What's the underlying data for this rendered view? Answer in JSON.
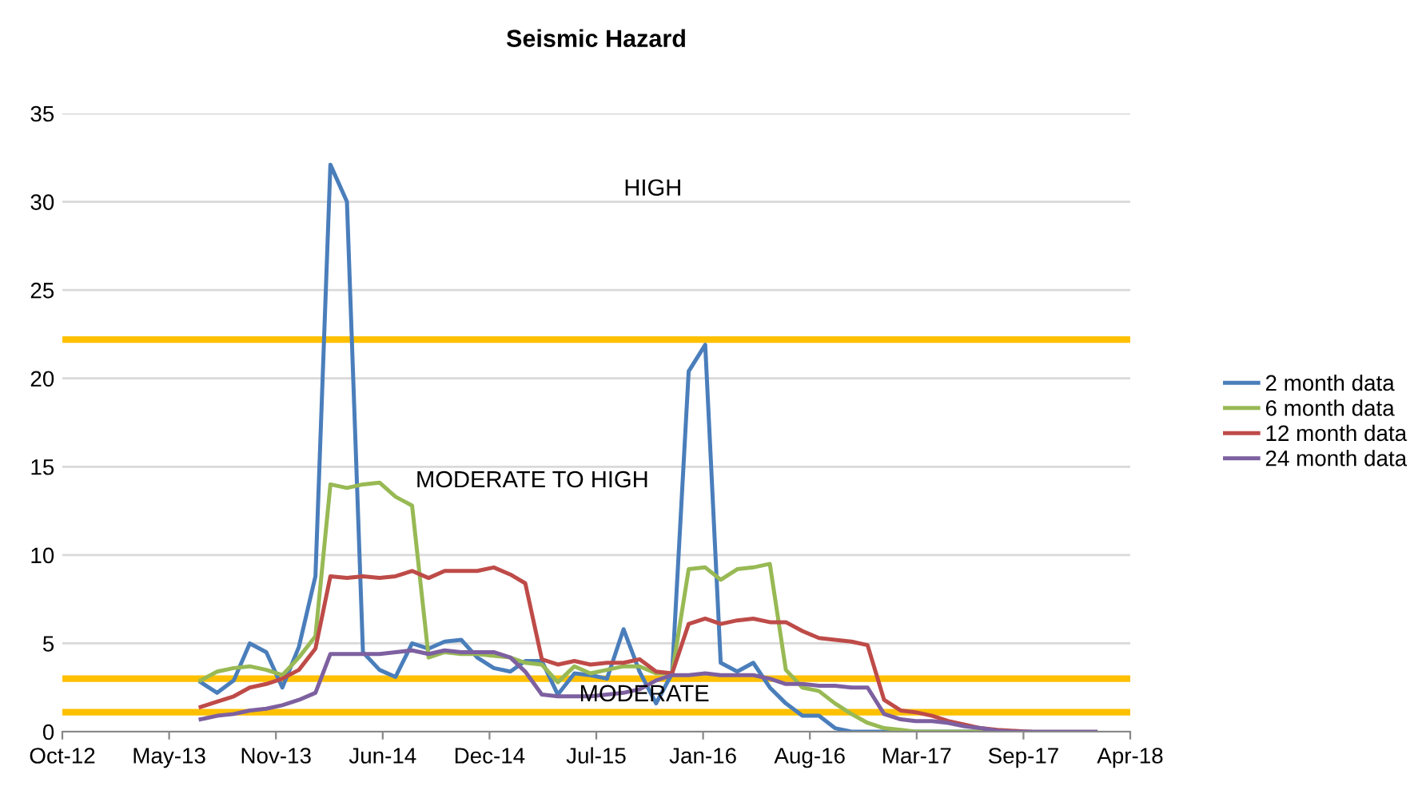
{
  "chart_data": {
    "type": "line",
    "title": "Seismic Hazard",
    "x": [
      "2013-07",
      "2013-08",
      "2013-09",
      "2013-10",
      "2013-11",
      "2013-12",
      "2014-01",
      "2014-02",
      "2014-03",
      "2014-04",
      "2014-05",
      "2014-06",
      "2014-07",
      "2014-08",
      "2014-09",
      "2014-10",
      "2014-11",
      "2014-12",
      "2015-01",
      "2015-02",
      "2015-03",
      "2015-04",
      "2015-05",
      "2015-06",
      "2015-07",
      "2015-08",
      "2015-09",
      "2015-10",
      "2015-11",
      "2015-12",
      "2016-01",
      "2016-02",
      "2016-03",
      "2016-04",
      "2016-05",
      "2016-06",
      "2016-07",
      "2016-08",
      "2016-09",
      "2016-10",
      "2016-11",
      "2016-12",
      "2017-01",
      "2017-02",
      "2017-03",
      "2017-04",
      "2017-05",
      "2017-06",
      "2017-07",
      "2017-08",
      "2017-09",
      "2017-10",
      "2017-11",
      "2017-12",
      "2018-01",
      "2018-02"
    ],
    "series": [
      {
        "name": "2 month data",
        "color": "#4a7ebb",
        "values": [
          2.8,
          2.2,
          2.9,
          5.0,
          4.5,
          2.5,
          4.8,
          8.8,
          32.1,
          30.0,
          4.5,
          3.5,
          3.1,
          5.0,
          4.7,
          5.1,
          5.2,
          4.2,
          3.6,
          3.4,
          4.0,
          4.0,
          2.1,
          3.3,
          3.2,
          3.0,
          5.8,
          3.4,
          1.6,
          3.3,
          20.4,
          21.9,
          3.9,
          3.4,
          3.9,
          2.5,
          1.6,
          0.9,
          0.9,
          0.2,
          0,
          0,
          0,
          0,
          0,
          0,
          0,
          0,
          0,
          0,
          null,
          null,
          null,
          null,
          null,
          null
        ]
      },
      {
        "name": "6 month data",
        "color": "#98b954",
        "values": [
          2.9,
          3.4,
          3.6,
          3.7,
          3.5,
          3.2,
          4.2,
          5.4,
          14.0,
          13.8,
          14.0,
          14.1,
          13.3,
          12.8,
          4.2,
          4.5,
          4.4,
          4.4,
          4.3,
          4.2,
          3.9,
          3.8,
          2.8,
          3.7,
          3.3,
          3.5,
          3.7,
          3.7,
          3.3,
          3.3,
          9.2,
          9.3,
          8.6,
          9.2,
          9.3,
          9.5,
          3.5,
          2.5,
          2.3,
          1.6,
          1.0,
          0.5,
          0.2,
          0.1,
          0,
          0,
          0,
          0,
          0,
          0,
          null,
          null,
          null,
          null,
          null,
          null
        ]
      },
      {
        "name": "12 month data",
        "color": "#be4b48",
        "values": [
          1.4,
          1.7,
          2.0,
          2.5,
          2.7,
          3.0,
          3.5,
          4.7,
          8.8,
          8.7,
          8.8,
          8.7,
          8.8,
          9.1,
          8.7,
          9.1,
          9.1,
          9.1,
          9.3,
          8.9,
          8.4,
          4.1,
          3.8,
          4.0,
          3.8,
          3.9,
          3.9,
          4.1,
          3.4,
          3.3,
          6.1,
          6.4,
          6.1,
          6.3,
          6.4,
          6.2,
          6.2,
          5.7,
          5.3,
          5.2,
          5.1,
          4.9,
          1.8,
          1.2,
          1.1,
          0.9,
          0.6,
          0.4,
          0.2,
          0.1,
          0.05,
          0,
          null,
          null,
          null,
          null
        ]
      },
      {
        "name": "24 month data",
        "color": "#7d60a0",
        "values": [
          0.7,
          0.9,
          1.0,
          1.2,
          1.3,
          1.5,
          1.8,
          2.2,
          4.4,
          4.4,
          4.4,
          4.4,
          4.5,
          4.6,
          4.4,
          4.6,
          4.5,
          4.5,
          4.5,
          4.2,
          3.4,
          2.1,
          2.0,
          2.0,
          2.0,
          2.1,
          2.2,
          2.4,
          2.9,
          3.2,
          3.2,
          3.3,
          3.2,
          3.2,
          3.2,
          3.0,
          2.7,
          2.7,
          2.6,
          2.6,
          2.5,
          2.5,
          1.0,
          0.7,
          0.6,
          0.6,
          0.5,
          0.3,
          0.2,
          0.05,
          0,
          0,
          0,
          0,
          0,
          0
        ]
      }
    ],
    "xlim": [
      "2012-10-15",
      "2018-04-07"
    ],
    "xticks": [
      {
        "value": "2012-10-15",
        "label": "Oct-12"
      },
      {
        "value": "2013-05-03",
        "label": "May-13"
      },
      {
        "value": "2013-11-19",
        "label": "Nov-13"
      },
      {
        "value": "2014-06-07",
        "label": "Jun-14"
      },
      {
        "value": "2014-12-24",
        "label": "Dec-14"
      },
      {
        "value": "2015-07-12",
        "label": "Jul-15"
      },
      {
        "value": "2016-01-28",
        "label": "Jan-16"
      },
      {
        "value": "2016-08-15",
        "label": "Aug-16"
      },
      {
        "value": "2017-03-03",
        "label": "Mar-17"
      },
      {
        "value": "2017-09-19",
        "label": "Sep-17"
      },
      {
        "value": "2018-04-07",
        "label": "Apr-18"
      }
    ],
    "ylim": [
      0,
      35
    ],
    "yticks": [
      0,
      5,
      10,
      15,
      20,
      25,
      30,
      35
    ],
    "ref_lines": [
      {
        "axis": "y",
        "value": 22.2,
        "color": "#ffc000"
      },
      {
        "axis": "y",
        "value": 3.0,
        "color": "#ffc000"
      },
      {
        "axis": "y",
        "value": 1.1,
        "color": "#ffc000"
      }
    ],
    "annotations": [
      "HIGH",
      "MODERATE TO HIGH",
      "MODERATE"
    ],
    "grid": "y",
    "legend": "right",
    "marker": "none",
    "line_style": "solid"
  }
}
